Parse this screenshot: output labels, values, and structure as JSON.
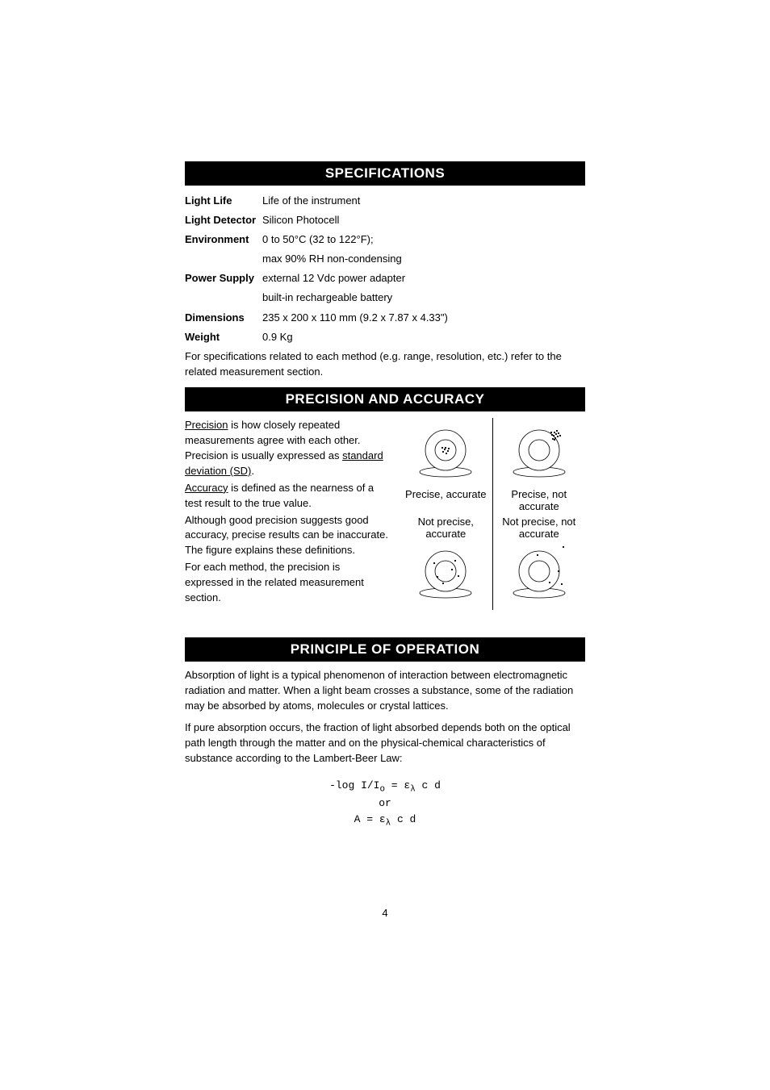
{
  "sections": {
    "specifications": {
      "header": "SPECIFICATIONS",
      "rows": [
        {
          "label": "Light Life",
          "value": "Life of the instrument"
        },
        {
          "label": "Light Detector",
          "value": "Silicon Photocell"
        },
        {
          "label": "Environment",
          "value": "0 to 50°C (32 to 122°F);"
        },
        {
          "label": "",
          "value": "max 90% RH non-condensing"
        },
        {
          "label": "Power Supply",
          "value": "external 12 Vdc power adapter"
        },
        {
          "label": "",
          "value": "built-in rechargeable battery"
        },
        {
          "label": "Dimensions",
          "value": "235 x 200 x 110 mm (9.2 x 7.87 x 4.33\")"
        },
        {
          "label": "Weight",
          "value": "0.9 Kg"
        }
      ],
      "note": "For specifications related to each method (e.g. range, resolution, etc.) refer to the related measurement section."
    },
    "precision": {
      "header": "PRECISION AND ACCURACY",
      "paragraphs": {
        "p1_u": "Precision",
        "p1_rest": " is how closely repeated measurements agree with each other. Precision is usually expressed as ",
        "p1_u2": "standard deviation (SD)",
        "p1_end": ".",
        "p2_u": "Accuracy",
        "p2_rest": " is defined as the nearness of a test result to the true value.",
        "p3": "Although good precision suggests good accuracy, precise results can be inaccurate. The figure explains these definitions.",
        "p4": "For each method, the precision is expressed in the related measurement section."
      },
      "targets": {
        "tl": "Precise, accurate",
        "tr": "Precise, not accurate",
        "bl": "Not precise, accurate",
        "br": "Not precise, not accurate"
      },
      "svg": {
        "size": 84,
        "stand_w": 64,
        "stand_h": 6,
        "outer_r": 25,
        "inner_r": 13,
        "stroke": "#000000",
        "stroke_w": 0.8,
        "dot_r": 1.1,
        "dots_precise_accurate": [
          [
            0,
            -3
          ],
          [
            3,
            1
          ],
          [
            -3,
            2
          ],
          [
            1,
            4
          ],
          [
            -1,
            -1
          ],
          [
            4,
            -2
          ],
          [
            -4,
            -3
          ]
        ],
        "dots_precise_not_accurate": [
          [
            18,
            -18
          ],
          [
            21,
            -20
          ],
          [
            19,
            -22
          ],
          [
            23,
            -17
          ],
          [
            16,
            -19
          ],
          [
            20,
            -15
          ],
          [
            24,
            -21
          ],
          [
            17,
            -14
          ],
          [
            26,
            -18
          ],
          [
            22,
            -24
          ],
          [
            15,
            -22
          ],
          [
            19,
            -13
          ]
        ],
        "dots_not_precise_accurate": [
          [
            -14,
            -10
          ],
          [
            12,
            -13
          ],
          [
            -3,
            15
          ],
          [
            16,
            6
          ],
          [
            -10,
            7
          ],
          [
            8,
            -2
          ]
        ],
        "dots_not_precise_not_accurate": [
          [
            30,
            -30
          ],
          [
            13,
            14
          ],
          [
            28,
            16
          ],
          [
            -2,
            -20
          ],
          [
            24,
            0
          ]
        ]
      }
    },
    "principle": {
      "header": "PRINCIPLE OF OPERATION",
      "p1": "Absorption of light is a typical phenomenon of interaction between electromagnetic radiation and matter. When a light beam crosses a substance, some of the radiation may be absorbed by atoms, molecules or crystal lattices.",
      "p2": "If pure absorption occurs, the fraction of light absorbed depends both on the optical path length through the matter and on the physical-chemical characteristics of substance according to the Lambert-Beer Law:",
      "formula_l1_left": "-log I/I",
      "formula_l1_sub": "o",
      "formula_l1_eq": " = ε",
      "formula_l1_lambda": "λ",
      "formula_l1_right": " c d",
      "formula_or": "or",
      "formula_l2_left": "A = ε",
      "formula_l2_lambda": "λ",
      "formula_l2_right": " c d"
    }
  },
  "page_number": "4"
}
